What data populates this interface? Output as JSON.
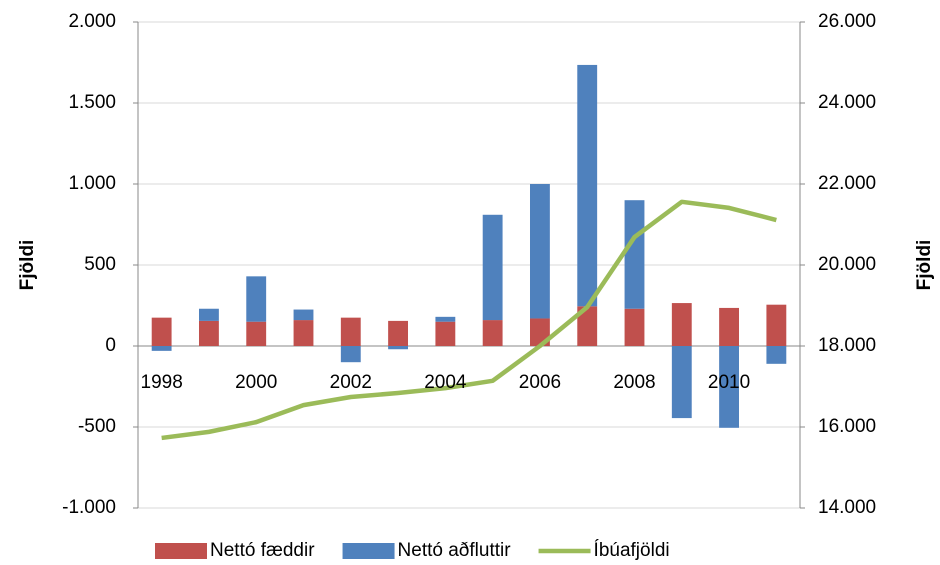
{
  "chart_data": {
    "type": "bar-line",
    "categories": [
      "1998",
      null,
      "2000",
      null,
      "2002",
      null,
      "2004",
      null,
      "2006",
      null,
      "2008",
      null,
      "2010",
      null
    ],
    "series": [
      {
        "name": "Nettó fæddir",
        "color": "#c0504d",
        "type": "bar",
        "values": [
          175,
          155,
          150,
          160,
          175,
          155,
          150,
          160,
          170,
          245,
          230,
          265,
          235,
          255
        ]
      },
      {
        "name": "Nettó aðfluttir",
        "color": "#4f81bd",
        "type": "bar",
        "values": [
          -30,
          75,
          280,
          65,
          -100,
          -20,
          30,
          650,
          830,
          1490,
          670,
          -445,
          -505,
          -110
        ]
      },
      {
        "name": "Íbúafjöldi",
        "color": "#9bbb59",
        "type": "line",
        "axis": "y2",
        "values": [
          15730,
          15880,
          16120,
          16540,
          16740,
          16840,
          16960,
          17140,
          18000,
          18960,
          20690,
          21560,
          21410,
          21110
        ]
      }
    ],
    "ylabel": "Fjöldi",
    "y2label": "Fjöldi",
    "ylim": [
      -1000,
      2000
    ],
    "yticks": [
      {
        "value": -1000,
        "label": "-1.000"
      },
      -500,
      0,
      500,
      {
        "value": 1000,
        "label": "1.000"
      },
      {
        "value": 1500,
        "label": "1.500"
      },
      {
        "value": 2000,
        "label": "2.000"
      }
    ],
    "y2lim": [
      14000,
      26000
    ],
    "y2ticks": [
      {
        "value": 14000,
        "label": "14.000"
      },
      {
        "value": 16000,
        "label": "16.000"
      },
      {
        "value": 18000,
        "label": "18.000"
      },
      {
        "value": 20000,
        "label": "20.000"
      },
      {
        "value": 22000,
        "label": "22.000"
      },
      {
        "value": 24000,
        "label": "24.000"
      },
      {
        "value": 26000,
        "label": "26.000"
      }
    ],
    "grid": true,
    "stacked": true,
    "legend": "bottom"
  }
}
